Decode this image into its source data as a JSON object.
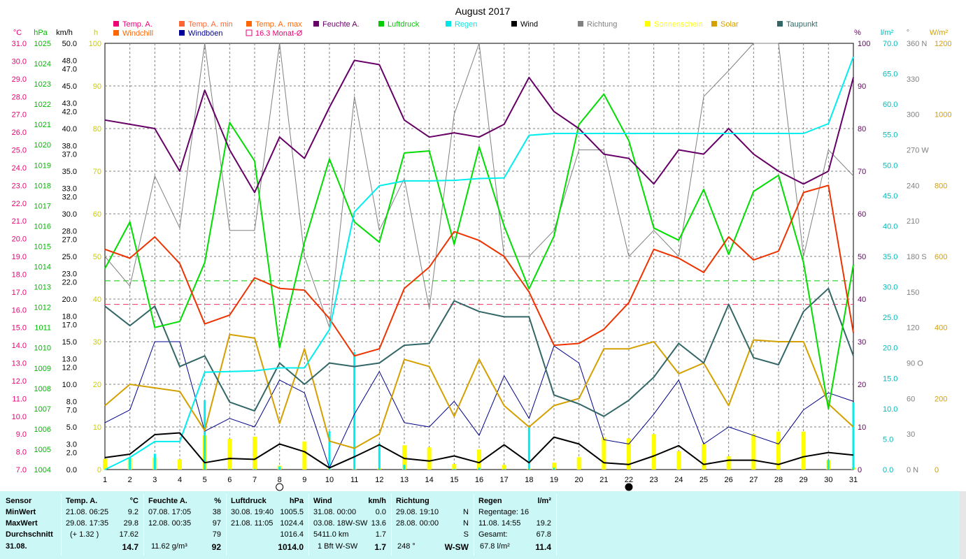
{
  "chart_data": {
    "type": "line",
    "title": "August 2017",
    "days": [
      1,
      2,
      3,
      4,
      5,
      6,
      7,
      8,
      9,
      10,
      11,
      12,
      13,
      14,
      15,
      16,
      17,
      18,
      19,
      20,
      21,
      22,
      23,
      24,
      25,
      26,
      27,
      28,
      29,
      30,
      31
    ],
    "xlim": [
      1,
      31
    ],
    "axes": {
      "temp": {
        "unit": "°C",
        "min": 7.0,
        "max": 31.0,
        "ticks": [
          "31.0",
          "30.0",
          "29.0",
          "28.0",
          "27.0",
          "26.0",
          "25.0",
          "24.0",
          "23.0",
          "22.0",
          "21.0",
          "20.0",
          "19.0",
          "18.0",
          "17.0",
          "16.0",
          "15.0",
          "14.0",
          "13.0",
          "12.0",
          "11.0",
          "10.0",
          "9.0",
          "8.0",
          "7.0"
        ]
      },
      "pressure": {
        "unit": "hPa",
        "min": 1004,
        "max": 1025,
        "ticks": [
          "1025",
          "1024",
          "1023",
          "1022",
          "1021",
          "1020",
          "1019",
          "1018",
          "1017",
          "1016",
          "1015",
          "1014",
          "1013",
          "1012",
          "1011",
          "1010",
          "1009",
          "1008",
          "1007",
          "1006",
          "1005",
          "1004"
        ]
      },
      "wind": {
        "unit": "km/h",
        "ticks": [
          {
            "v": 50,
            "l": "50.0"
          },
          {
            "v": 48,
            "l": "48.0"
          },
          {
            "v": 47,
            "l": "47.0"
          },
          {
            "v": 45,
            "l": "45.0"
          },
          {
            "v": 43,
            "l": "43.0"
          },
          {
            "v": 42,
            "l": "42.0"
          },
          {
            "v": 40,
            "l": "40.0"
          },
          {
            "v": 38,
            "l": "38.0"
          },
          {
            "v": 37,
            "l": "37.0"
          },
          {
            "v": 35,
            "l": "35.0"
          },
          {
            "v": 33,
            "l": "33.0"
          },
          {
            "v": 32,
            "l": "32.0"
          },
          {
            "v": 30,
            "l": "30.0"
          },
          {
            "v": 28,
            "l": "28.0"
          },
          {
            "v": 27,
            "l": "27.0"
          },
          {
            "v": 25,
            "l": "25.0"
          },
          {
            "v": 23,
            "l": "23.0"
          },
          {
            "v": 22,
            "l": "22.0"
          },
          {
            "v": 20,
            "l": "20.0"
          },
          {
            "v": 18,
            "l": "18.0"
          },
          {
            "v": 17,
            "l": "17.0"
          },
          {
            "v": 15,
            "l": "15.0"
          },
          {
            "v": 13,
            "l": "13.0"
          },
          {
            "v": 12,
            "l": "12.0"
          },
          {
            "v": 10,
            "l": "10.0"
          },
          {
            "v": 8,
            "l": "8.0"
          },
          {
            "v": 7,
            "l": "7.0"
          },
          {
            "v": 5,
            "l": "5.0"
          },
          {
            "v": 3,
            "l": "3.0"
          },
          {
            "v": 2,
            "l": "2.0"
          },
          {
            "v": 0,
            "l": "0.0"
          }
        ]
      },
      "sunshine": {
        "unit": "h",
        "min": 0,
        "max": 100,
        "ticks": [
          "100",
          "90",
          "80",
          "70",
          "60",
          "50",
          "40",
          "30",
          "20",
          "10",
          "0"
        ]
      },
      "humidity": {
        "unit": "%",
        "min": 0,
        "max": 100,
        "ticks": [
          "100",
          "90",
          "80",
          "70",
          "60",
          "50",
          "40",
          "30",
          "20",
          "10",
          "0"
        ]
      },
      "rain": {
        "unit": "l/m²",
        "min": 0,
        "max": 70,
        "ticks": [
          "70.0",
          "65.0",
          "60.0",
          "55.0",
          "50.0",
          "45.0",
          "40.0",
          "35.0",
          "30.0",
          "25.0",
          "20.0",
          "15.0",
          "10.0",
          "5.0",
          "0.0"
        ]
      },
      "direction": {
        "unit": "°",
        "min": 0,
        "max": 360,
        "ticks": [
          {
            "v": 360,
            "l": "360 N"
          },
          {
            "v": 330,
            "l": "330"
          },
          {
            "v": 300,
            "l": "300"
          },
          {
            "v": 270,
            "l": "270 W"
          },
          {
            "v": 240,
            "l": "240"
          },
          {
            "v": 210,
            "l": "210"
          },
          {
            "v": 180,
            "l": "180 S"
          },
          {
            "v": 150,
            "l": "150"
          },
          {
            "v": 120,
            "l": "120"
          },
          {
            "v": 90,
            "l": "90 O"
          },
          {
            "v": 60,
            "l": "60"
          },
          {
            "v": 30,
            "l": "30"
          },
          {
            "v": 0,
            "l": "0 N"
          }
        ]
      },
      "solar": {
        "unit": "W/m²",
        "min": 0,
        "max": 1200,
        "ticks": [
          "1200",
          "1000",
          "800",
          "600",
          "400",
          "200",
          "0"
        ]
      }
    },
    "legend": [
      {
        "label": "Temp. A.",
        "color": "#ee0077",
        "kind": "box"
      },
      {
        "label": "Temp. A. min",
        "color": "#ff6633",
        "kind": "box"
      },
      {
        "label": "Temp. A. max",
        "color": "#ff6600",
        "kind": "box"
      },
      {
        "label": "Feuchte A.",
        "color": "#660066",
        "kind": "box"
      },
      {
        "label": "Luftdruck",
        "color": "#00cc00",
        "kind": "box"
      },
      {
        "label": "Regen",
        "color": "#00e5e5",
        "kind": "box"
      },
      {
        "label": "Wind",
        "color": "#000000",
        "kind": "box"
      },
      {
        "label": "Richtung",
        "color": "#808080",
        "kind": "box"
      },
      {
        "label": "Sonnenschein",
        "color": "#ffff00",
        "kind": "box"
      },
      {
        "label": "Solar",
        "color": "#d4a000",
        "kind": "box"
      },
      {
        "label": "Taupunkt",
        "color": "#336666",
        "kind": "box"
      },
      {
        "label": "Windchill",
        "color": "#ff6600",
        "kind": "box"
      },
      {
        "label": "Windböen",
        "color": "#000099",
        "kind": "box"
      },
      {
        "label": "16.3 Monat-Ø",
        "color": "#ee0077",
        "kind": "outline"
      }
    ],
    "series": [
      {
        "name": "Temp. A.",
        "axis": "temp",
        "color": "#ee3300",
        "values": [
          19.4,
          18.9,
          20.1,
          18.6,
          15.2,
          15.7,
          17.8,
          17.2,
          17.1,
          15.5,
          13.4,
          13.8,
          17.2,
          18.4,
          20.4,
          19.9,
          19.0,
          17.0,
          14.0,
          14.1,
          14.9,
          16.4,
          19.4,
          18.9,
          18.1,
          20.1,
          18.8,
          19.3,
          22.6,
          23.0,
          14.7
        ]
      },
      {
        "name": "Feuchte A.",
        "axis": "humidity",
        "color": "#660066",
        "values": [
          82,
          81,
          80,
          70,
          89,
          75,
          65,
          78,
          73,
          85,
          96,
          95,
          82,
          78,
          79,
          78,
          81,
          92,
          84,
          80,
          74,
          73,
          67,
          75,
          74,
          80,
          74,
          70,
          67,
          70,
          92
        ]
      },
      {
        "name": "Luftdruck",
        "axis": "pressure",
        "color": "#00dd00",
        "values": [
          1013.9,
          1016.2,
          1011.0,
          1011.3,
          1014.2,
          1021.1,
          1019.2,
          1010.0,
          1015.2,
          1019.3,
          1016.2,
          1015.2,
          1019.6,
          1019.7,
          1015.1,
          1019.9,
          1016.0,
          1012.9,
          1015.5,
          1021.0,
          1022.5,
          1020.2,
          1015.9,
          1015.3,
          1017.8,
          1014.6,
          1017.7,
          1018.5,
          1014.2,
          1007.0,
          1014.1
        ]
      },
      {
        "name": "Regen",
        "axis": "rain",
        "color": "#00eeee",
        "values": [
          0,
          2.0,
          4.6,
          4.6,
          16.0,
          16.1,
          16.2,
          16.7,
          16.7,
          23.0,
          42.3,
          46.6,
          47.4,
          47.4,
          47.5,
          47.8,
          47.9,
          54.9,
          55.2,
          55.2,
          55.2,
          55.2,
          55.2,
          55.2,
          55.2,
          55.2,
          55.2,
          55.2,
          55.2,
          56.8,
          67.8
        ]
      },
      {
        "name": "Wind",
        "axis": "wind",
        "color": "#000000",
        "values": [
          1.4,
          1.8,
          4.1,
          4.3,
          0.8,
          1.3,
          1.2,
          3.0,
          2.1,
          0.2,
          1.5,
          2.9,
          1.3,
          1.0,
          1.6,
          0.8,
          2.9,
          0.8,
          3.8,
          3.0,
          0.8,
          0.6,
          1.6,
          2.8,
          0.6,
          1.1,
          1.1,
          0.6,
          1.5,
          2.0,
          1.7
        ]
      },
      {
        "name": "Windböen",
        "axis": "wind",
        "color": "#000088",
        "values": [
          5.5,
          7.0,
          15.0,
          15.0,
          4.5,
          6.0,
          5.0,
          10.5,
          9.0,
          0.2,
          6.5,
          11.5,
          5.5,
          5.0,
          8.0,
          4.0,
          11.0,
          6.0,
          14.5,
          12.5,
          3.5,
          3.0,
          6.5,
          10.5,
          3.0,
          5.0,
          4.0,
          3.0,
          7.0,
          9.0,
          8.0
        ]
      },
      {
        "name": "Richtung",
        "axis": "direction",
        "color": "#808080",
        "values": [
          180,
          155,
          248,
          204,
          360,
          202,
          202,
          360,
          180,
          120,
          315,
          202,
          246,
          136,
          300,
          360,
          180,
          180,
          202,
          270,
          270,
          180,
          202,
          180,
          315,
          337,
          360,
          360,
          180,
          270,
          248
        ]
      },
      {
        "name": "Taupunkt",
        "axis": "temp",
        "color": "#336666",
        "values": [
          16.2,
          15.1,
          16.2,
          12.8,
          13.4,
          10.8,
          10.3,
          13.0,
          11.8,
          13.0,
          12.8,
          13.0,
          14.0,
          14.1,
          16.5,
          15.9,
          15.6,
          15.6,
          11.2,
          10.7,
          10.0,
          10.9,
          12.2,
          14.1,
          13.0,
          16.3,
          13.3,
          12.9,
          15.9,
          17.2,
          13.4
        ]
      },
      {
        "name": "Solar",
        "axis": "solar",
        "color": "#d4a000",
        "values": [
          180,
          240,
          230,
          220,
          110,
          380,
          370,
          130,
          340,
          80,
          60,
          100,
          310,
          290,
          150,
          310,
          180,
          120,
          180,
          200,
          340,
          340,
          360,
          270,
          300,
          180,
          365,
          360,
          360,
          185,
          120
        ]
      },
      {
        "name": "Sonnenschein",
        "axis": "sunshine",
        "color": "#ffff00",
        "values": [
          2.5,
          2.7,
          2.8,
          2.4,
          8.0,
          7.2,
          7.7,
          0.9,
          6.6,
          0.2,
          0.1,
          0.3,
          5.7,
          5.2,
          1.3,
          4.7,
          1.1,
          0.2,
          1.6,
          2.9,
          7.6,
          7.3,
          8.3,
          4.3,
          6.0,
          3.1,
          8.3,
          8.9,
          8.9,
          2.2,
          0.5
        ]
      },
      {
        "name": "Temp. A. Monatsmittel",
        "axis": "temp",
        "color": "#ee3366",
        "value": 16.3
      },
      {
        "name": "Luftdruck Monatsmittel",
        "axis": "pressure",
        "color": "#00cc00",
        "value": 1013.3
      }
    ],
    "moon_phases": [
      {
        "day": 8,
        "phase": "full"
      },
      {
        "day": 22,
        "phase": "new"
      }
    ]
  },
  "footer": {
    "sensor": {
      "header": "Sensor",
      "rows": [
        "MinWert",
        "MaxWert",
        "Durchschnitt"
      ],
      "date": "31.08."
    },
    "temp": {
      "header": "Temp. A.",
      "unit": "°C",
      "min_when": "21.08.  06:25",
      "min_val": "9.2",
      "max_when": "29.08.  17:35",
      "max_val": "29.8",
      "avg_extra": "(+ 1.32 )",
      "avg_val": "17.62",
      "today": "14.7"
    },
    "humidity": {
      "header": "Feuchte A.",
      "unit": "%",
      "min_when": "07.08.  17:05",
      "min_val": "38",
      "max_when": "12.08.  00:35",
      "max_val": "97",
      "avg_val": "79",
      "today_extra": "11.62 g/m³",
      "today": "92"
    },
    "pressure": {
      "header": "Luftdruck",
      "unit": "hPa",
      "min_when": "30.08.  19:40",
      "min_val": "1005.5",
      "max_when": "21.08.  11:05",
      "max_val": "1024.4",
      "avg_val": "1016.4",
      "today": "1014.0"
    },
    "wind": {
      "header": "Wind",
      "unit": "km/h",
      "min_when": "31.08.  00:00",
      "min_val": "0.0",
      "max_when": "03.08.  18W-SW",
      "max_val": "13.6",
      "avg_extra": "5411.0 km",
      "avg_val": "1.7",
      "today_extra": "1 Bft W-SW",
      "today": "1.7"
    },
    "direction": {
      "header": "Richtung",
      "min_when": "29.08.  19:10",
      "min_val": "N",
      "max_when": "28.08.  00:00",
      "max_val": "N",
      "avg_val": "S",
      "today_extra": "248 °",
      "today": "W-SW"
    },
    "rain": {
      "header": "Regen",
      "unit": "l/m²",
      "row1": "Regentage: 16",
      "row2_when": "11.08.  14:55",
      "row2_val": "19.2",
      "row3_label": "Gesamt:",
      "row3_val": "67.8",
      "today_extra": "67.8 l/m²",
      "today": "11.4"
    }
  }
}
